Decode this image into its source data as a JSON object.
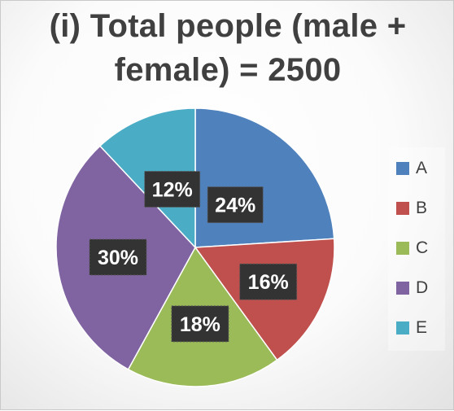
{
  "chart_data": {
    "type": "pie",
    "title_lines": [
      "(i) Total people (male +",
      "female) = 2500"
    ],
    "categories": [
      "A",
      "B",
      "C",
      "D",
      "E"
    ],
    "values": [
      24,
      16,
      18,
      30,
      12
    ],
    "labels": [
      "24%",
      "16%",
      "18%",
      "30%",
      "12%"
    ],
    "colors": [
      "#4f81bd",
      "#c0504d",
      "#9bbb59",
      "#8064a2",
      "#4bacc6"
    ],
    "legend_position": "right"
  }
}
